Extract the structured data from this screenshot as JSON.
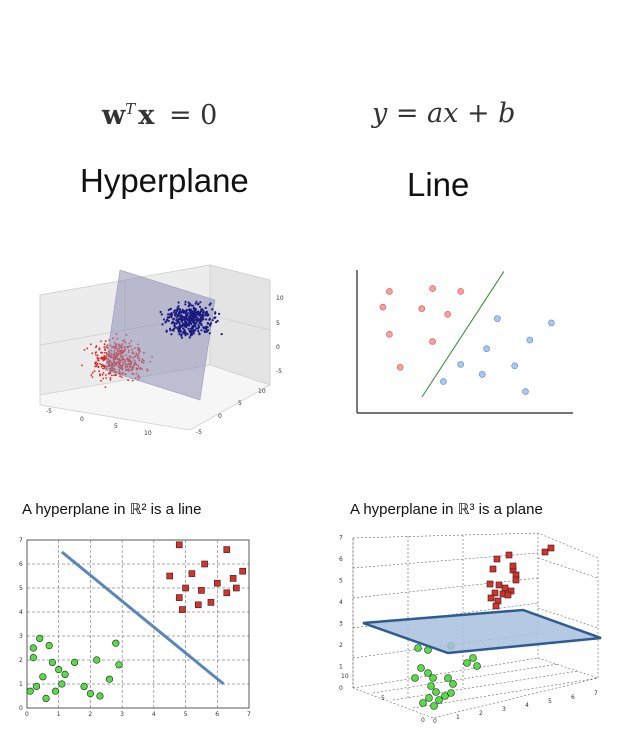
{
  "top_left": {
    "equation": {
      "w": "w",
      "sup": "T",
      "x": "x",
      "rhs": "= 0"
    },
    "title": "Hyperplane"
  },
  "top_right": {
    "equation": "y = ax + b",
    "title": "Line"
  },
  "captions": {
    "left": "A hyperplane in ℝ² is a line",
    "right": "A hyperplane in ℝ³ is a plane"
  },
  "scatter3d": {
    "z_ticks": [
      "10",
      "5",
      "0",
      "-5"
    ],
    "y_ticks": [
      "10",
      "5",
      "0",
      "-5"
    ],
    "x_ticks": [
      "-5",
      "0",
      "5",
      "10"
    ]
  },
  "line_demo": {
    "red_points": [
      [
        0.15,
        0.15
      ],
      [
        0.35,
        0.13
      ],
      [
        0.48,
        0.15
      ],
      [
        0.12,
        0.26
      ],
      [
        0.3,
        0.27
      ],
      [
        0.42,
        0.31
      ],
      [
        0.15,
        0.45
      ],
      [
        0.35,
        0.5
      ],
      [
        0.2,
        0.68
      ]
    ],
    "blue_points": [
      [
        0.65,
        0.34
      ],
      [
        0.9,
        0.37
      ],
      [
        0.8,
        0.49
      ],
      [
        0.6,
        0.55
      ],
      [
        0.48,
        0.66
      ],
      [
        0.58,
        0.73
      ],
      [
        0.4,
        0.78
      ],
      [
        0.73,
        0.67
      ],
      [
        0.78,
        0.85
      ]
    ],
    "line": {
      "from": [
        0.3,
        0.89
      ],
      "to": [
        0.68,
        0.01
      ]
    },
    "colors": {
      "red": "#f4a0a0",
      "blue": "#a9c8ef",
      "line": "#2f8a2f"
    }
  },
  "plot2d": {
    "x_ticks": [
      "0",
      "1",
      "2",
      "3",
      "4",
      "5",
      "6",
      "7"
    ],
    "y_ticks": [
      "0",
      "1",
      "2",
      "3",
      "4",
      "5",
      "6",
      "7"
    ],
    "xlim": [
      0,
      7
    ],
    "ylim": [
      0,
      7
    ],
    "red_squares": [
      [
        4.8,
        6.8
      ],
      [
        6.3,
        6.6
      ],
      [
        5.6,
        6.0
      ],
      [
        4.5,
        5.5
      ],
      [
        5.2,
        5.6
      ],
      [
        6.0,
        5.2
      ],
      [
        6.5,
        5.4
      ],
      [
        6.8,
        5.7
      ],
      [
        5.0,
        5.0
      ],
      [
        5.5,
        4.9
      ],
      [
        6.6,
        5.0
      ],
      [
        4.8,
        4.6
      ],
      [
        5.8,
        4.4
      ],
      [
        6.3,
        4.8
      ],
      [
        5.4,
        4.3
      ],
      [
        4.9,
        4.1
      ]
    ],
    "green_circles": [
      [
        0.2,
        2.5
      ],
      [
        0.4,
        2.9
      ],
      [
        0.7,
        2.6
      ],
      [
        2.8,
        2.7
      ],
      [
        0.2,
        2.1
      ],
      [
        0.8,
        1.9
      ],
      [
        1.5,
        1.9
      ],
      [
        2.2,
        2.0
      ],
      [
        2.9,
        1.8
      ],
      [
        1.0,
        1.6
      ],
      [
        1.2,
        1.4
      ],
      [
        0.5,
        1.3
      ],
      [
        1.1,
        1.0
      ],
      [
        0.3,
        0.9
      ],
      [
        1.8,
        0.9
      ],
      [
        0.9,
        0.7
      ],
      [
        2.0,
        0.6
      ],
      [
        2.3,
        0.5
      ],
      [
        0.1,
        0.7
      ],
      [
        0.6,
        0.4
      ],
      [
        2.6,
        1.2
      ]
    ],
    "line": {
      "from": [
        1.1,
        6.5
      ],
      "to": [
        6.2,
        1.0
      ]
    },
    "colors": {
      "red": "#d6312b",
      "green": "#55dd44",
      "line": "#5a86b8"
    }
  },
  "plot3d": {
    "z_ticks": [
      "0",
      "1",
      "2",
      "3",
      "4",
      "5",
      "6",
      "7"
    ],
    "x_ticks": [
      "0",
      "1",
      "2",
      "3",
      "4",
      "5",
      "6",
      "7"
    ],
    "y_ticks": [
      "0",
      "5",
      "10"
    ],
    "colors": {
      "plane_fill": "#a8bfdd",
      "plane_edge": "#2e5b93",
      "red": "#d6312b",
      "green": "#55dd44"
    }
  }
}
